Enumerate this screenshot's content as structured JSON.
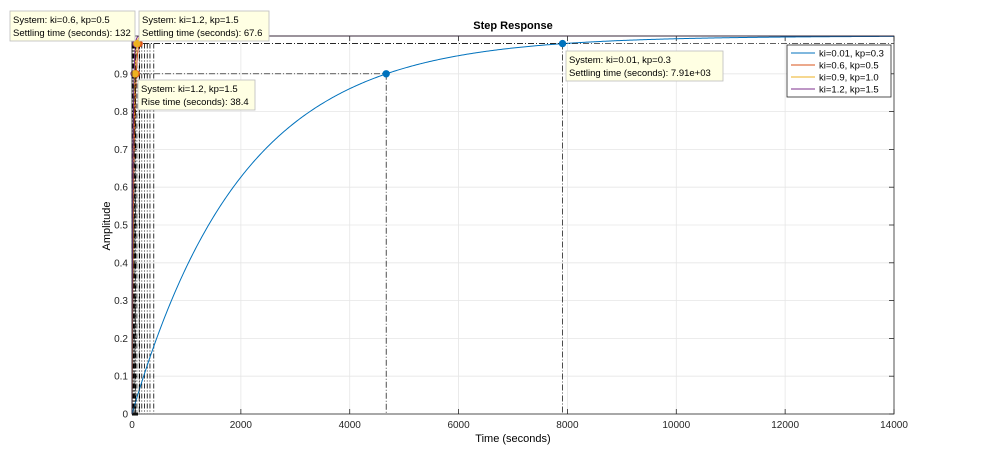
{
  "chart_data": {
    "type": "line",
    "title": "Step Response",
    "xlabel": "Time (seconds)",
    "ylabel": "Amplitude",
    "xlim": [
      0,
      14000
    ],
    "ylim": [
      0,
      1.0
    ],
    "x_ticks": [
      0,
      2000,
      4000,
      6000,
      8000,
      10000,
      12000,
      14000
    ],
    "y_ticks": [
      0,
      0.1,
      0.2,
      0.3,
      0.4,
      0.5,
      0.6,
      0.7,
      0.8,
      0.9
    ],
    "x_tick_labels": [
      "0",
      "2000",
      "4000",
      "6000",
      "8000",
      "10000",
      "12000",
      "14000"
    ],
    "y_tick_labels": [
      "0",
      "0.1",
      "0.2",
      "0.3",
      "0.4",
      "0.5",
      "0.6",
      "0.7",
      "0.8",
      "0.9"
    ],
    "grid": true,
    "legend_position": "top-right",
    "series": [
      {
        "name": "ki=0.01,  kp=0.3",
        "color": "#0072BD",
        "time_constant": 2030
      },
      {
        "name": "ki=0.6,  kp=0.5",
        "color": "#D95319",
        "time_constant": 34
      },
      {
        "name": "ki=0.9,  kp=1.0",
        "color": "#EDB120",
        "time_constant": 23
      },
      {
        "name": "ki=1.2,  kp=1.5",
        "color": "#7E2F8E",
        "time_constant": 17
      }
    ],
    "markers": [
      {
        "series": 0,
        "x": 4670,
        "y": 0.9
      },
      {
        "series": 0,
        "x": 7910,
        "y": 0.98
      },
      {
        "series": 1,
        "x": 132,
        "y": 0.98
      },
      {
        "series": 3,
        "x": 67.6,
        "y": 0.98
      },
      {
        "series": 3,
        "x": 38.4,
        "y": 0.9
      }
    ],
    "annotations": [
      {
        "system": "System: ki=0.6,  kp=0.5",
        "metric": "Settling time (seconds): 132"
      },
      {
        "system": "System: ki=1.2,  kp=1.5",
        "metric": "Settling time (seconds): 67.6"
      },
      {
        "system": "System: ki=1.2,  kp=1.5",
        "metric": "Rise time (seconds): 38.4"
      },
      {
        "system": "System: ki=0.01,  kp=0.3",
        "metric": "Settling time (seconds): 7.91e+03"
      }
    ]
  }
}
